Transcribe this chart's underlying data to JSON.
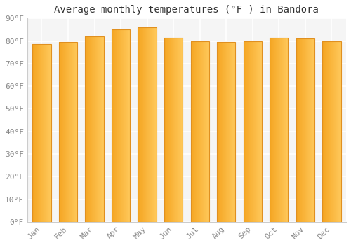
{
  "title": "Average monthly temperatures (°F ) in Bandora",
  "months": [
    "Jan",
    "Feb",
    "Mar",
    "Apr",
    "May",
    "Jun",
    "Jul",
    "Aug",
    "Sep",
    "Oct",
    "Nov",
    "Dec"
  ],
  "values": [
    78.5,
    79.5,
    82,
    85,
    86,
    81.5,
    80,
    79.5,
    80,
    81.5,
    81,
    80
  ],
  "bar_color_left": "#F5A623",
  "bar_color_right": "#FFC85A",
  "bar_edge_color": "#E09020",
  "ylim": [
    0,
    90
  ],
  "yticks": [
    0,
    10,
    20,
    30,
    40,
    50,
    60,
    70,
    80,
    90
  ],
  "ytick_labels": [
    "0°F",
    "10°F",
    "20°F",
    "30°F",
    "40°F",
    "50°F",
    "60°F",
    "70°F",
    "80°F",
    "90°F"
  ],
  "background_color": "#FFFFFF",
  "plot_bg_color": "#F5F5F5",
  "grid_color": "#FFFFFF",
  "title_fontsize": 10,
  "tick_fontsize": 8,
  "tick_color": "#888888",
  "font_family": "monospace",
  "bar_width": 0.7
}
